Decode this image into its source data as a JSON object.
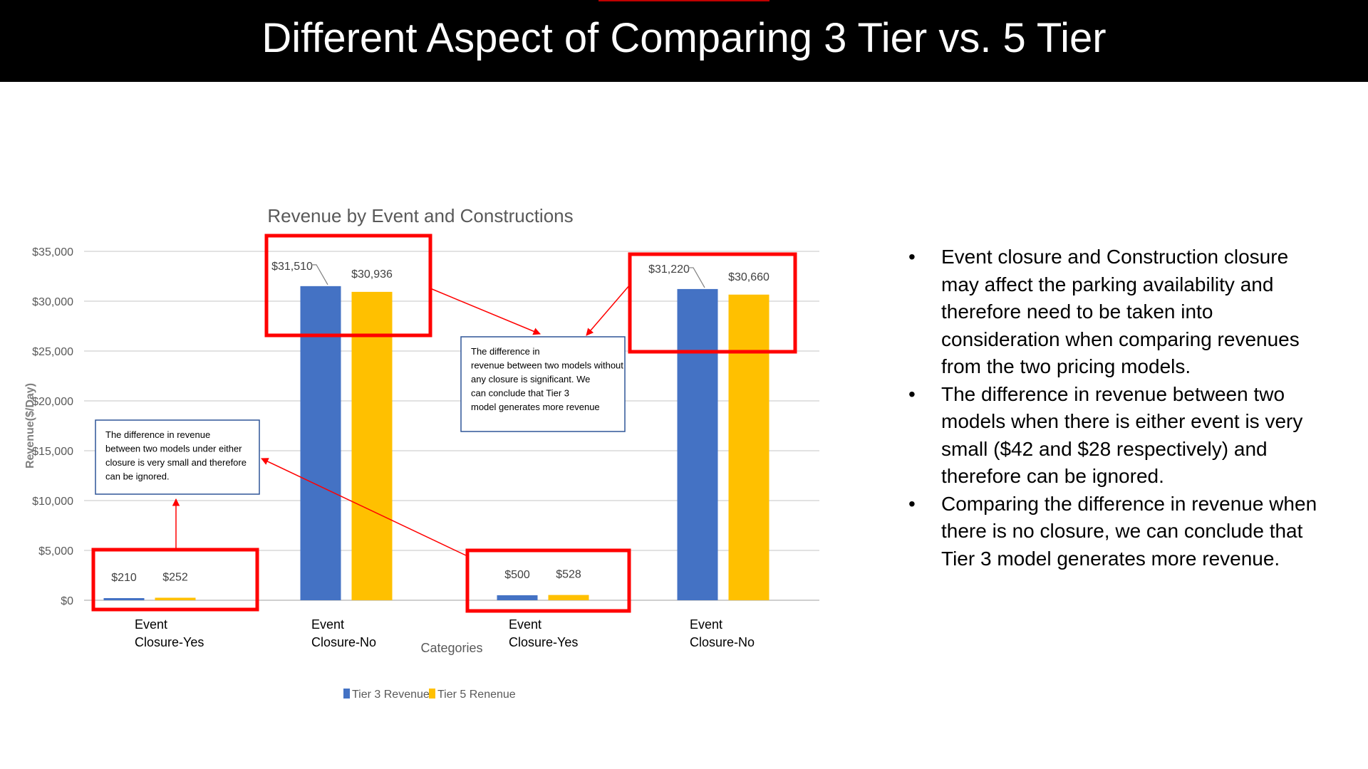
{
  "slide": {
    "title": "Different Aspect of Comparing 3 Tier vs. 5 Tier",
    "bullets": [
      "Event closure and Construction closure may affect the parking availability and therefore need to be taken into consideration when comparing revenues from the two pricing models.",
      "The difference in revenue between two models when there is either event is  very small ($42 and $28 respectively) and therefore can be ignored.",
      "Comparing the difference in revenue when there is no closure, we can conclude that Tier 3 model generates more revenue."
    ]
  },
  "chart_data": {
    "type": "bar",
    "title": "Revenue by Event and Constructions",
    "xlabel": "Categories",
    "ylabel": "Revenue($/Day)",
    "categories": [
      "Event Closure-Yes",
      "Event Closure-No",
      "Event Closure-Yes",
      "Event Closure-No"
    ],
    "series": [
      {
        "name": "Tier 3 Revenue",
        "color": "#4472c4",
        "values": [
          210,
          31510,
          500,
          31220
        ],
        "labels": [
          "$210",
          "$31,510",
          "$500",
          "$31,220"
        ]
      },
      {
        "name": "Tier 5 Renenue",
        "color": "#ffc000",
        "values": [
          252,
          30936,
          528,
          30660
        ],
        "labels": [
          "$252",
          "$30,936",
          "$528",
          "$30,660"
        ]
      }
    ],
    "ylim": [
      0,
      35000
    ],
    "yticks": [
      0,
      5000,
      10000,
      15000,
      20000,
      25000,
      30000,
      35000
    ],
    "ytick_labels": [
      "$0",
      "$5,000",
      "$10,000",
      "$15,000",
      "$20,000",
      "$25,000",
      "$30,000",
      "$35,000"
    ],
    "grid": true,
    "legend_position": "bottom",
    "highlight_color": "#ff0000",
    "annotations": [
      "The difference in revenue between two models under either closure is very small and therefore can be ignored.",
      "The difference in revenue between two models without any closure is significant. We can conclude that Tier 3 model generates more revenue"
    ]
  }
}
